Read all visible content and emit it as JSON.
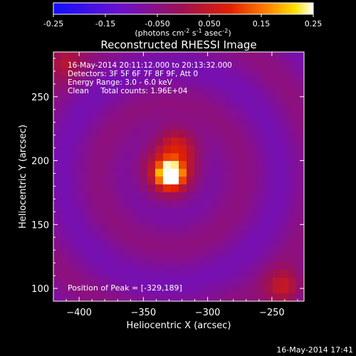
{
  "chart_data": {
    "type": "heatmap",
    "title": "Reconstructed RHESSI Image",
    "colorbar": {
      "label_html": [
        "(photons cm",
        "-2",
        " s",
        "-1",
        " asec",
        "-2",
        ")"
      ],
      "min": -0.25,
      "max": 0.25,
      "ticks": [
        "-0.25",
        "-0.15",
        "-0.050",
        "0.050",
        "0.15",
        "0.25"
      ],
      "colormap": "blue-purple-red-orange-yellow-white (sunset)"
    },
    "xlabel": "Heliocentric X (arcsec)",
    "ylabel": "Heliocentric Y (arcsec)",
    "xlim": [
      -420,
      -225
    ],
    "ylim": [
      90,
      285
    ],
    "xticks": [
      -400,
      -350,
      -300,
      -250
    ],
    "yticks": [
      100,
      150,
      200,
      250
    ],
    "annotations": [
      "16-May-2014 20:11:12.000 to 20:13:32.000",
      "Detectors: 3F 5F 6F 7F 8F 9F, Att 0",
      "Energy Range: 3.0 - 6.0 keV",
      "Clean     Total counts: 1.96E+04"
    ],
    "peak_label": "Position of Peak = [-329,189]",
    "peak": {
      "x": -329,
      "y": 189
    },
    "sources": [
      {
        "x": -329,
        "y": 189,
        "amplitude": 1.0,
        "sigma": 6
      },
      {
        "x": -330,
        "y": 194,
        "amplitude": 0.45,
        "sigma": 16
      },
      {
        "x": -326,
        "y": 215,
        "amplitude": 0.22,
        "sigma": 9
      },
      {
        "x": -315,
        "y": 210,
        "amplitude": 0.12,
        "sigma": 9
      },
      {
        "x": -240,
        "y": 100,
        "amplitude": 0.35,
        "sigma": 10
      },
      {
        "x": -412,
        "y": 278,
        "amplitude": 0.25,
        "sigma": 10
      }
    ],
    "background_value": -0.07
  },
  "footer": {
    "timestamp": "16-May-2014 17:41"
  },
  "colors": {
    "background": "#000000",
    "foreground": "#ffffff"
  }
}
